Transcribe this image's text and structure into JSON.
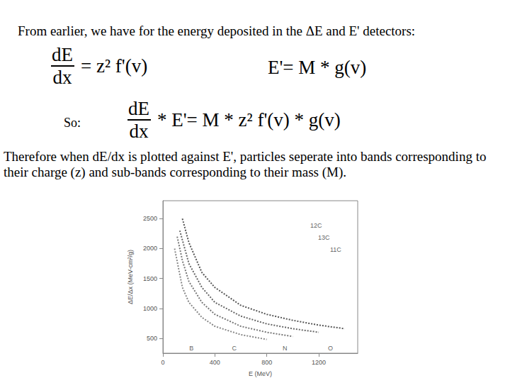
{
  "slide": {
    "heading": "From earlier, we have for the energy deposited in the ΔE and E' detectors:",
    "equations": [
      {
        "numerator": "dE",
        "denominator": "dx",
        "rhs": "= z² f'(v)"
      },
      {
        "lhs": "E'= M * g(v)"
      },
      {
        "numerator": "dE",
        "denominator": "dx",
        "rhs": "* E'= M * z² f'(v) * g(v)"
      }
    ],
    "so": "So:",
    "body": "Therefore when dE/dx is plotted against E', particles seperate into bands corresponding to their charge (z) and sub-bands corresponding to their mass (M)."
  },
  "chart_data": {
    "type": "line",
    "x_label": "E (MeV)",
    "y_label": "ΔE/Δx (MeV-cm²/g)",
    "xlim": [
      0,
      1500
    ],
    "xticks": [
      0,
      400,
      800,
      1200
    ],
    "ylim": [
      250,
      2800
    ],
    "yticks": [
      500,
      1000,
      1500,
      2000,
      2500
    ],
    "grid": false,
    "line_style": "dotted",
    "marker": "none",
    "series": [
      {
        "color": "#555555",
        "x": [
          150,
          200,
          300,
          400,
          600,
          800,
          1000,
          1200,
          1400
        ],
        "values": [
          2500,
          2100,
          1600,
          1350,
          1050,
          900,
          800,
          720,
          660
        ]
      },
      {
        "color": "#666666",
        "x": [
          130,
          200,
          300,
          400,
          600,
          800,
          1000,
          1200
        ],
        "values": [
          2300,
          1750,
          1350,
          1100,
          870,
          740,
          660,
          600
        ]
      },
      {
        "color": "#777777",
        "x": [
          110,
          150,
          200,
          300,
          400,
          600,
          800,
          1000
        ],
        "values": [
          2200,
          1800,
          1450,
          1100,
          900,
          700,
          600,
          530
        ]
      },
      {
        "color": "#888888",
        "x": [
          90,
          150,
          200,
          300,
          400,
          600,
          800
        ],
        "values": [
          2000,
          1350,
          1100,
          850,
          700,
          560,
          480
        ]
      }
    ],
    "annotations": [
      {
        "text": "B",
        "x": 220,
        "y": 330
      },
      {
        "text": "C",
        "x": 550,
        "y": 330
      },
      {
        "text": "N",
        "x": 940,
        "y": 330
      },
      {
        "text": "O",
        "x": 1290,
        "y": 330
      },
      {
        "text": "12C",
        "x": 1180,
        "y": 2380
      },
      {
        "text": "13C",
        "x": 1240,
        "y": 2180
      },
      {
        "text": "11C",
        "x": 1330,
        "y": 1980
      }
    ]
  }
}
